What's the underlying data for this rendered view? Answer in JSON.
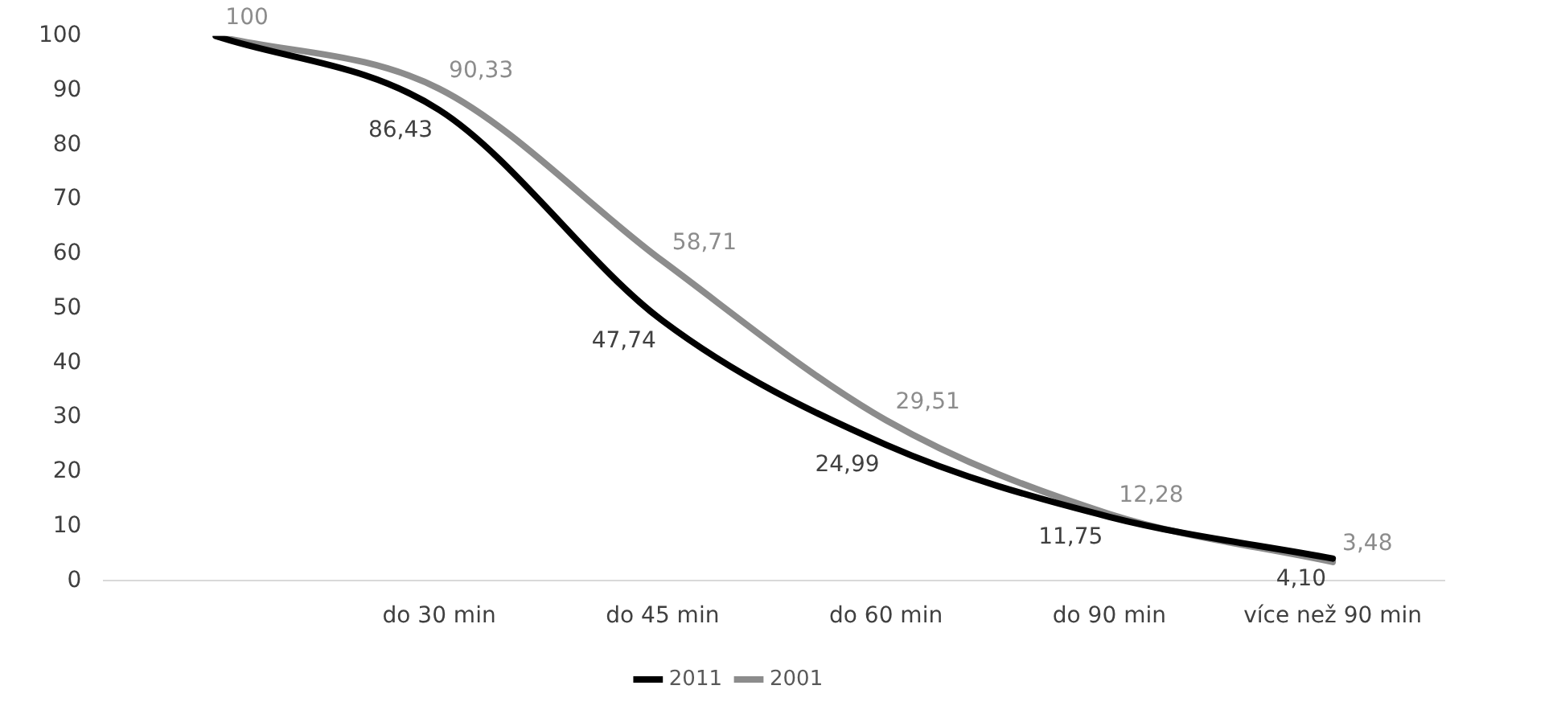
{
  "chart_data": {
    "type": "line",
    "categories": [
      null,
      "do 30 min",
      "do 45 min",
      "do 60 min",
      "do 90 min",
      "více než 90 min"
    ],
    "series": [
      {
        "name": "2011",
        "color": "#000000",
        "values": [
          100,
          86.43,
          47.74,
          24.99,
          11.75,
          4.1
        ],
        "value_labels": [
          null,
          "86,43",
          "47,74",
          "24,99",
          "11,75",
          "4,10"
        ]
      },
      {
        "name": "2001",
        "color": "#8c8c8c",
        "values": [
          100,
          90.33,
          58.71,
          29.51,
          12.28,
          3.48
        ],
        "value_labels": [
          "100",
          "90,33",
          "58,71",
          "29,51",
          "12,28",
          "3,48"
        ]
      }
    ],
    "ylim": [
      0,
      100
    ],
    "yticks": [
      0,
      10,
      20,
      30,
      40,
      50,
      60,
      70,
      80,
      90,
      100
    ],
    "grid": false,
    "legend": "bottom",
    "marker": "none",
    "line_style": "solid"
  }
}
